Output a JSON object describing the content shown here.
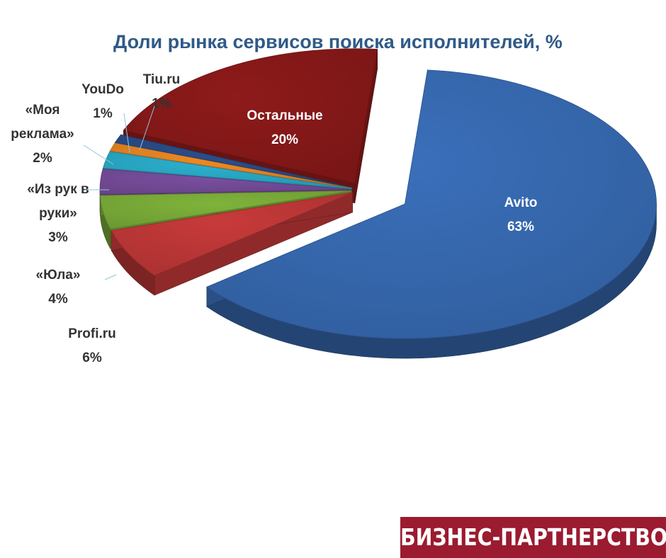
{
  "title": "Доли рынка сервисов поиска исполнителей, %",
  "brand": "БИЗНЕС-ПАРТНЕРСТВО",
  "colors": {
    "Avito": "#3a6fba",
    "Profi.ru": "#c83a3a",
    "Yula": "#7fb33b",
    "IzRukVRuki": "#7a4fa0",
    "MoyaReklama": "#2bb0cf",
    "YouDo": "#f08a24",
    "Tiu": "#2a4f8c",
    "Other": "#8e1a1a"
  },
  "chart_data": {
    "type": "pie",
    "title": "Доли рынка сервисов поиска исполнителей, %",
    "unit": "%",
    "exploded": true,
    "three_d": true,
    "slices": [
      {
        "label": "Avito",
        "value": 63,
        "text": "63%",
        "color": "#3a6fba"
      },
      {
        "label": "Profi.ru",
        "value": 6,
        "text": "6%",
        "color": "#c83a3a"
      },
      {
        "label": "«Юла»",
        "value": 4,
        "text": "4%",
        "color": "#7fb33b"
      },
      {
        "label": "«Из рук в руки»",
        "value": 3,
        "text": "3%",
        "color": "#7a4fa0"
      },
      {
        "label": "«Моя реклама»",
        "value": 2,
        "text": "2%",
        "color": "#2bb0cf"
      },
      {
        "label": "YouDo",
        "value": 1,
        "text": "1%",
        "color": "#f08a24"
      },
      {
        "label": "Tiu.ru",
        "value": 1,
        "text": "1%",
        "color": "#2a4f8c"
      },
      {
        "label": "Остальные",
        "value": 20,
        "text": "20%",
        "color": "#8e1a1a"
      }
    ]
  }
}
